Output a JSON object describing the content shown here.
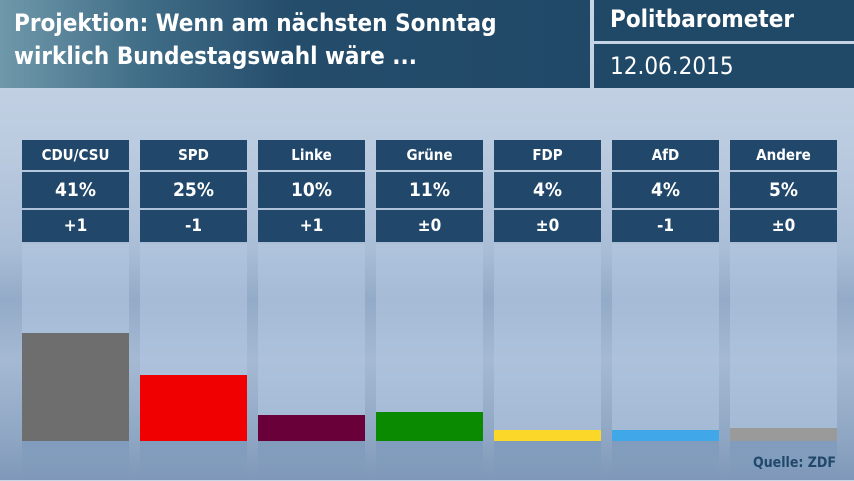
{
  "header": {
    "title_line1": "Projektion: Wenn am nächsten Sonntag",
    "title_line2": "wirklich Bundestagswahl wäre ...",
    "brand": "Politbarometer",
    "date": "12.06.2015"
  },
  "chart_data": {
    "type": "bar",
    "categories": [
      "CDU/CSU",
      "SPD",
      "Linke",
      "Grüne",
      "FDP",
      "AfD",
      "Andere"
    ],
    "values": [
      41,
      25,
      10,
      11,
      4,
      4,
      5
    ],
    "value_labels": [
      "41%",
      "25%",
      "10%",
      "11%",
      "4%",
      "4%",
      "5%"
    ],
    "changes": [
      "+1",
      "-1",
      "+1",
      "±0",
      "±0",
      "-1",
      "±0"
    ],
    "colors": [
      "#6e6e6e",
      "#f00000",
      "#6a003a",
      "#0a8a00",
      "#fad728",
      "#40a8e8",
      "#9a9a9a"
    ],
    "unit": "%"
  },
  "source": "Quelle: ZDF"
}
